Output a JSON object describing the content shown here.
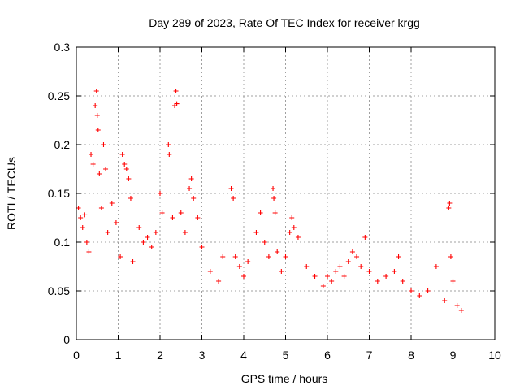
{
  "chart_data": {
    "type": "scatter",
    "title": "Day 289 of 2023, Rate Of TEC Index for receiver krgg",
    "xlabel": "GPS time / hours",
    "ylabel": "ROTI / TECUs",
    "xlim": [
      0,
      10
    ],
    "ylim": [
      0,
      0.3
    ],
    "xticks": [
      "0",
      "1",
      "2",
      "3",
      "4",
      "5",
      "6",
      "7",
      "8",
      "9",
      "10"
    ],
    "yticks": [
      "0",
      "0.05",
      "0.1",
      "0.15",
      "0.2",
      "0.25",
      "0.3"
    ],
    "grid": true,
    "marker": "+",
    "color": "#ff0000",
    "series": [
      {
        "name": "ROTI",
        "points": [
          [
            0.05,
            0.135
          ],
          [
            0.1,
            0.125
          ],
          [
            0.15,
            0.115
          ],
          [
            0.2,
            0.128
          ],
          [
            0.25,
            0.1
          ],
          [
            0.3,
            0.09
          ],
          [
            0.35,
            0.19
          ],
          [
            0.4,
            0.18
          ],
          [
            0.45,
            0.24
          ],
          [
            0.48,
            0.255
          ],
          [
            0.5,
            0.23
          ],
          [
            0.52,
            0.215
          ],
          [
            0.55,
            0.17
          ],
          [
            0.6,
            0.135
          ],
          [
            0.65,
            0.2
          ],
          [
            0.7,
            0.175
          ],
          [
            0.75,
            0.11
          ],
          [
            0.85,
            0.14
          ],
          [
            0.95,
            0.12
          ],
          [
            1.05,
            0.085
          ],
          [
            1.1,
            0.19
          ],
          [
            1.15,
            0.18
          ],
          [
            1.2,
            0.175
          ],
          [
            1.25,
            0.165
          ],
          [
            1.3,
            0.145
          ],
          [
            1.35,
            0.08
          ],
          [
            1.5,
            0.115
          ],
          [
            1.6,
            0.1
          ],
          [
            1.7,
            0.105
          ],
          [
            1.8,
            0.095
          ],
          [
            1.9,
            0.11
          ],
          [
            2.0,
            0.15
          ],
          [
            2.05,
            0.13
          ],
          [
            2.2,
            0.2
          ],
          [
            2.22,
            0.19
          ],
          [
            2.3,
            0.125
          ],
          [
            2.35,
            0.24
          ],
          [
            2.38,
            0.255
          ],
          [
            2.4,
            0.242
          ],
          [
            2.5,
            0.13
          ],
          [
            2.6,
            0.11
          ],
          [
            2.7,
            0.155
          ],
          [
            2.75,
            0.165
          ],
          [
            2.8,
            0.145
          ],
          [
            2.9,
            0.125
          ],
          [
            3.0,
            0.095
          ],
          [
            3.2,
            0.07
          ],
          [
            3.4,
            0.06
          ],
          [
            3.5,
            0.085
          ],
          [
            3.7,
            0.155
          ],
          [
            3.75,
            0.145
          ],
          [
            3.8,
            0.085
          ],
          [
            3.9,
            0.075
          ],
          [
            4.0,
            0.065
          ],
          [
            4.1,
            0.08
          ],
          [
            4.3,
            0.11
          ],
          [
            4.4,
            0.13
          ],
          [
            4.5,
            0.1
          ],
          [
            4.6,
            0.085
          ],
          [
            4.7,
            0.155
          ],
          [
            4.72,
            0.145
          ],
          [
            4.75,
            0.13
          ],
          [
            4.8,
            0.09
          ],
          [
            4.9,
            0.07
          ],
          [
            5.0,
            0.085
          ],
          [
            5.1,
            0.11
          ],
          [
            5.15,
            0.125
          ],
          [
            5.2,
            0.115
          ],
          [
            5.3,
            0.105
          ],
          [
            5.5,
            0.075
          ],
          [
            5.7,
            0.065
          ],
          [
            5.9,
            0.055
          ],
          [
            6.0,
            0.065
          ],
          [
            6.1,
            0.06
          ],
          [
            6.2,
            0.07
          ],
          [
            6.3,
            0.075
          ],
          [
            6.4,
            0.065
          ],
          [
            6.5,
            0.08
          ],
          [
            6.6,
            0.09
          ],
          [
            6.7,
            0.085
          ],
          [
            6.8,
            0.075
          ],
          [
            6.9,
            0.105
          ],
          [
            7.0,
            0.07
          ],
          [
            7.2,
            0.06
          ],
          [
            7.4,
            0.065
          ],
          [
            7.6,
            0.07
          ],
          [
            7.7,
            0.085
          ],
          [
            7.8,
            0.06
          ],
          [
            8.0,
            0.05
          ],
          [
            8.2,
            0.045
          ],
          [
            8.4,
            0.05
          ],
          [
            8.6,
            0.075
          ],
          [
            8.8,
            0.04
          ],
          [
            8.9,
            0.135
          ],
          [
            8.92,
            0.14
          ],
          [
            8.95,
            0.085
          ],
          [
            9.0,
            0.06
          ],
          [
            9.1,
            0.035
          ],
          [
            9.2,
            0.03
          ]
        ]
      }
    ]
  }
}
